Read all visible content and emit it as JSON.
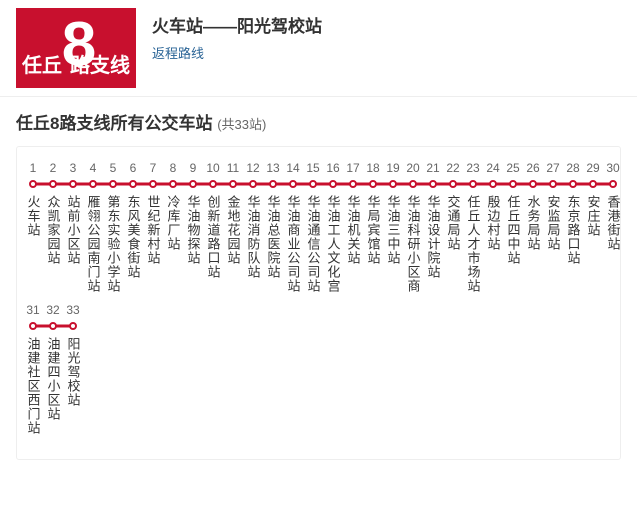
{
  "header": {
    "logo_prefix": "任丘",
    "logo_number": "8",
    "logo_suffix": "路支线",
    "route_title": "火车站——阳光驾校站",
    "reverse_link": "返程路线"
  },
  "section": {
    "title_prefix": "任丘8路支线所有公交车站",
    "count_label": "(共33站)"
  },
  "colors": {
    "brand": "#c8102e",
    "link": "#2a6496",
    "text": "#333333",
    "muted": "#666666",
    "border": "#eeeeee"
  },
  "stops": [
    {
      "num": "1",
      "name": "火车站"
    },
    {
      "num": "2",
      "name": "众凯家园站"
    },
    {
      "num": "3",
      "name": "站前小区站"
    },
    {
      "num": "4",
      "name": "雁翎公园南门站"
    },
    {
      "num": "5",
      "name": "第东实验小学站"
    },
    {
      "num": "6",
      "name": "东风美食街站"
    },
    {
      "num": "7",
      "name": "世纪新村站"
    },
    {
      "num": "8",
      "name": "冷库厂站"
    },
    {
      "num": "9",
      "name": "华油物探站"
    },
    {
      "num": "10",
      "name": "创新道路口站"
    },
    {
      "num": "11",
      "name": "金地花园站"
    },
    {
      "num": "12",
      "name": "华油消防队站"
    },
    {
      "num": "13",
      "name": "华油总医院站"
    },
    {
      "num": "14",
      "name": "华油商业公司站"
    },
    {
      "num": "15",
      "name": "华油通信公司站"
    },
    {
      "num": "16",
      "name": "华油工人文化宫"
    },
    {
      "num": "17",
      "name": "华油机关站"
    },
    {
      "num": "18",
      "name": "华局宾馆站"
    },
    {
      "num": "19",
      "name": "华油三中站"
    },
    {
      "num": "20",
      "name": "华油科研小区商"
    },
    {
      "num": "21",
      "name": "华油设计院站"
    },
    {
      "num": "22",
      "name": "交通局站"
    },
    {
      "num": "23",
      "name": "任丘人才市场站"
    },
    {
      "num": "24",
      "name": "殷边村站"
    },
    {
      "num": "25",
      "name": "任丘四中站"
    },
    {
      "num": "26",
      "name": "水务局站"
    },
    {
      "num": "27",
      "name": "安监局站"
    },
    {
      "num": "28",
      "name": "东京路口站"
    },
    {
      "num": "29",
      "name": "安庄站"
    },
    {
      "num": "30",
      "name": "香港街站"
    },
    {
      "num": "31",
      "name": "油建社区西门站"
    },
    {
      "num": "32",
      "name": "油建四小区站"
    },
    {
      "num": "33",
      "name": "阳光驾校站"
    }
  ],
  "layout": {
    "stops_per_row": 30
  }
}
